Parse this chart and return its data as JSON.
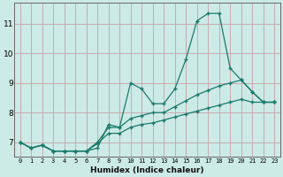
{
  "xlabel": "Humidex (Indice chaleur)",
  "x_values": [
    0,
    1,
    2,
    3,
    4,
    5,
    6,
    7,
    8,
    9,
    10,
    11,
    12,
    13,
    14,
    15,
    16,
    17,
    18,
    19,
    20,
    21,
    22,
    23
  ],
  "line1": [
    7.0,
    6.8,
    6.9,
    6.7,
    6.7,
    6.7,
    6.7,
    6.8,
    7.6,
    7.5,
    9.0,
    8.8,
    8.3,
    8.3,
    8.8,
    9.8,
    11.1,
    11.35,
    11.35,
    9.5,
    9.1,
    8.7,
    8.35,
    8.35
  ],
  "line2": [
    7.0,
    6.8,
    6.9,
    6.7,
    6.7,
    6.7,
    6.7,
    7.0,
    7.5,
    7.5,
    7.8,
    7.9,
    8.0,
    8.0,
    8.2,
    8.4,
    8.6,
    8.75,
    8.9,
    9.0,
    9.1,
    8.7,
    8.35,
    8.35
  ],
  "line3": [
    7.0,
    6.8,
    6.9,
    6.7,
    6.7,
    6.7,
    6.7,
    6.95,
    7.3,
    7.3,
    7.5,
    7.6,
    7.65,
    7.75,
    7.85,
    7.95,
    8.05,
    8.15,
    8.25,
    8.35,
    8.45,
    8.35,
    8.35,
    8.35
  ],
  "line_color": "#1a7a6a",
  "bg_color": "#cceae6",
  "grid_color": "#aad4ce",
  "ylim": [
    6.5,
    11.7
  ],
  "yticks": [
    7,
    8,
    9,
    10,
    11
  ],
  "xticks": [
    0,
    1,
    2,
    3,
    4,
    5,
    6,
    7,
    8,
    9,
    10,
    11,
    12,
    13,
    14,
    15,
    16,
    17,
    18,
    19,
    20,
    21,
    22,
    23
  ]
}
